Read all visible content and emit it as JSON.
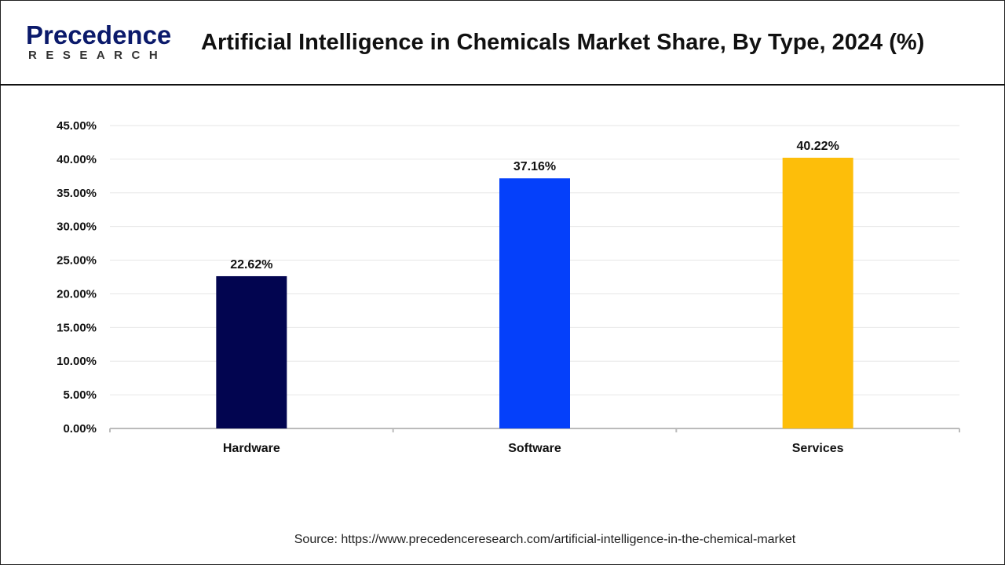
{
  "header": {
    "logo_text": "Precedence",
    "logo_sub": "RESEARCH",
    "title": "Artificial Intelligence in Chemicals Market Share, By Type, 2024 (%)"
  },
  "chart_data": {
    "type": "bar",
    "title": "Artificial Intelligence in Chemicals Market Share, By Type, 2024 (%)",
    "categories": [
      "Hardware",
      "Software",
      "Services"
    ],
    "values": [
      22.62,
      37.16,
      40.22
    ],
    "data_labels": [
      "22.62%",
      "37.16%",
      "40.22%"
    ],
    "colors": [
      "#020550",
      "#0540fa",
      "#fdbe0a"
    ],
    "ylim": [
      0,
      45
    ],
    "yticks": [
      "0.00%",
      "5.00%",
      "10.00%",
      "15.00%",
      "20.00%",
      "25.00%",
      "30.00%",
      "35.00%",
      "40.00%",
      "45.00%"
    ],
    "grid": true,
    "xlabel": "",
    "ylabel": ""
  },
  "footer": {
    "source": "Source: https://www.precedenceresearch.com/artificial-intelligence-in-the-chemical-market"
  }
}
